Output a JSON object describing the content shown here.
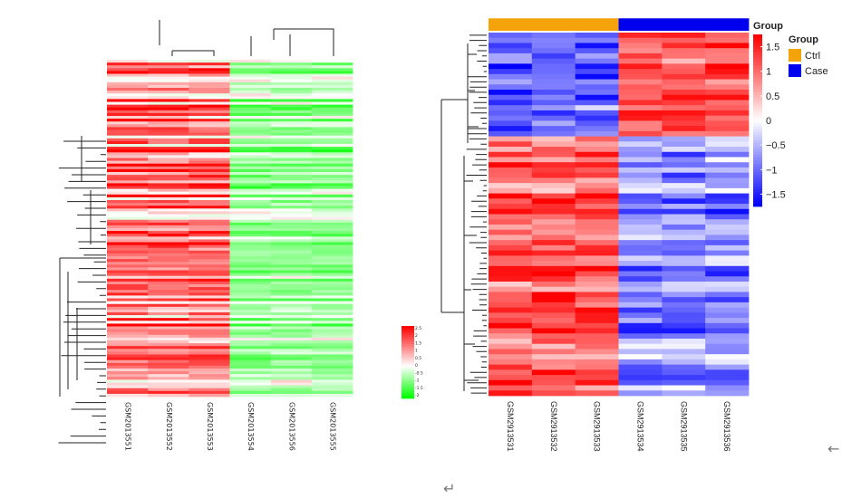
{
  "chart_data": [
    {
      "type": "heatmap",
      "name": "left-heatmap",
      "samples": [
        "GSM2013551",
        "GSM2013552",
        "GSM2013553",
        "GSM2013554",
        "GSM2013556",
        "GSM2013555"
      ],
      "low_color": "#00ff00",
      "mid_color": "#ffffff",
      "high_color": "#ff0000",
      "legend_ticks": [
        "2.5",
        "2",
        "1.5",
        "1",
        "0.5",
        "0",
        "-0.5",
        "-1",
        "-1.5",
        "-2"
      ],
      "legend_range": [
        -2,
        2.5
      ],
      "row_count": 120,
      "groups": [
        {
          "columns": [
            0,
            1,
            2
          ],
          "mean": 0.75
        },
        {
          "columns": [
            3,
            4,
            5
          ],
          "mean": -0.75
        }
      ]
    },
    {
      "type": "heatmap",
      "name": "right-heatmap",
      "samples": [
        "GSM2913531",
        "GSM2913532",
        "GSM2913533",
        "GSM2913534",
        "GSM2913535",
        "GSM2913536"
      ],
      "sample_groups": [
        "Ctrl",
        "Ctrl",
        "Ctrl",
        "Case",
        "Case",
        "Case"
      ],
      "annotation_title": "Group",
      "groups": [
        {
          "name": "Ctrl",
          "color": "#f5a30a"
        },
        {
          "name": "Case",
          "color": "#0000ee"
        }
      ],
      "colorbar_title": "Group",
      "colorbar_ticks": [
        1.5,
        1,
        0.5,
        0,
        -0.5,
        -1,
        -1.5
      ],
      "colorbar_range": [
        -1.75,
        1.75
      ],
      "low_color": "#0000ff",
      "mid_color": "#ffffff",
      "high_color": "#ff0000",
      "row_count": 70,
      "row_blocks": [
        {
          "rows": 20,
          "ctrl_mean": -1.0,
          "case_mean": 1.1
        },
        {
          "rows": 50,
          "ctrl_mean": 1.1,
          "case_mean": -0.8
        }
      ]
    }
  ],
  "ui": {
    "arrow_left": "←",
    "return_symbol": "↵"
  }
}
